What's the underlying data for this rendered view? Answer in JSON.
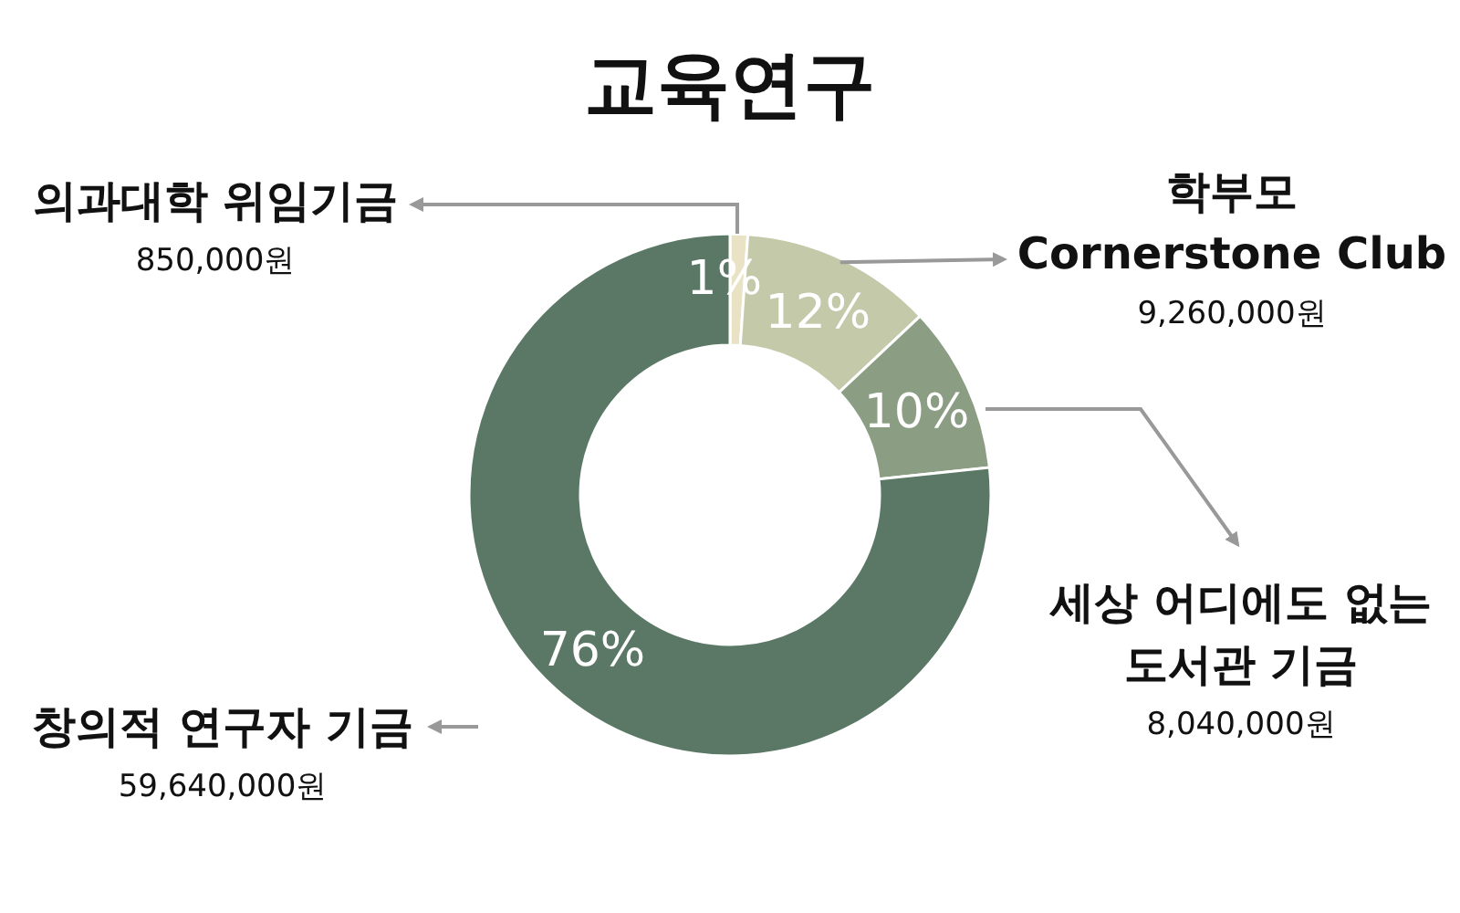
{
  "chart_data": {
    "type": "donut",
    "title": "교육연구",
    "categories": [
      "의과대학 위임기금",
      "학부모\nCornerstone Club",
      "세상 어디에도 없는\n도서관 기금",
      "창의적 연구자 기금"
    ],
    "values": [
      850000,
      9260000,
      8040000,
      59640000
    ],
    "colors": [
      "#e9e2c4",
      "#c3c9a9",
      "#8b9e84",
      "#5a7865"
    ],
    "value_labels": [
      "850,000원",
      "9,260,000원",
      "8,040,000원",
      "59,640,000원"
    ],
    "annotations": [
      {
        "text": "1%",
        "x": "의과대학 위임기금"
      },
      {
        "text": "12%",
        "x": "학부모\nCornerstone Club"
      },
      {
        "text": "10%",
        "x": "세상 어디에도 없는\n도서관 기금"
      },
      {
        "text": "76%",
        "x": "창의적 연구자 기금"
      }
    ],
    "legend": false
  }
}
